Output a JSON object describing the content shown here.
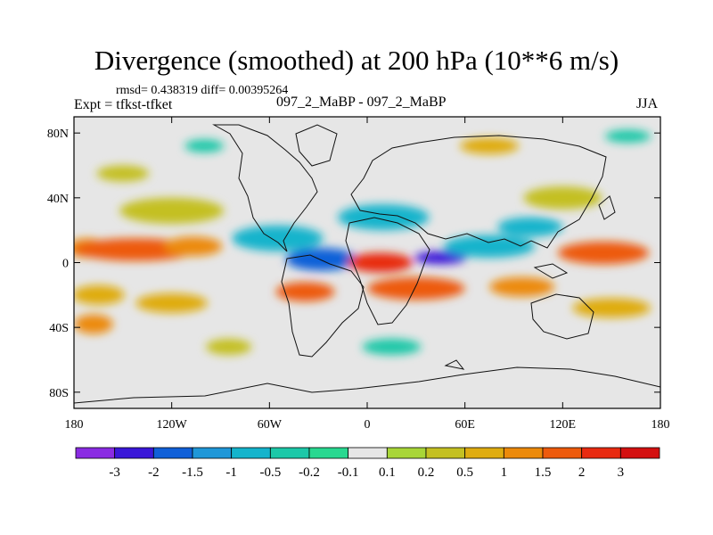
{
  "chart_data": {
    "type": "heatmap",
    "title": "Divergence (smoothed) at 200 hPa (10**6 m/s)",
    "subtitle_left_top": "rmsd= 0.438319 diff= 0.00395264",
    "subtitle_left": "Expt = tfkst-tfket",
    "subtitle_center": "097_2_MaBP - 097_2_MaBP",
    "subtitle_right": "JJA",
    "x_axis": {
      "range": [
        -180,
        180
      ],
      "ticks": [
        {
          "value": -180,
          "label": "180"
        },
        {
          "value": -120,
          "label": "120W"
        },
        {
          "value": -60,
          "label": "60W"
        },
        {
          "value": 0,
          "label": "0"
        },
        {
          "value": 60,
          "label": "60E"
        },
        {
          "value": 120,
          "label": "120E"
        },
        {
          "value": 180,
          "label": "180"
        }
      ]
    },
    "y_axis": {
      "range": [
        -90,
        90
      ],
      "ticks": [
        {
          "value": 80,
          "label": "80N"
        },
        {
          "value": 40,
          "label": "40N"
        },
        {
          "value": 0,
          "label": "0"
        },
        {
          "value": -40,
          "label": "40S"
        },
        {
          "value": -80,
          "label": "80S"
        }
      ]
    },
    "colorbar": {
      "levels": [
        "-3",
        "-2",
        "-1.5",
        "-1",
        "-0.5",
        "-0.2",
        "-0.1",
        "0.1",
        "0.2",
        "0.5",
        "1",
        "1.5",
        "2",
        "3"
      ],
      "colors": [
        "#8a2be2",
        "#3a17d8",
        "#1060d8",
        "#1f97d8",
        "#14b4cc",
        "#1cc8a8",
        "#28d890",
        "#e6e6e6",
        "#a8d638",
        "#c4c022",
        "#dfac10",
        "#ec8a0a",
        "#ed5a0c",
        "#e82a10",
        "#d41010"
      ]
    },
    "field_blobs": [
      {
        "lon": -172,
        "lat": 9,
        "rlon": 12,
        "rlat": 6,
        "level": 11
      },
      {
        "lon": -142,
        "lat": 8,
        "rlon": 38,
        "rlat": 7,
        "level": 12
      },
      {
        "lon": -107,
        "lat": 10,
        "rlon": 18,
        "rlat": 6,
        "level": 11
      },
      {
        "lon": -165,
        "lat": -20,
        "rlon": 16,
        "rlat": 6,
        "level": 10
      },
      {
        "lon": -120,
        "lat": -25,
        "rlon": 22,
        "rlat": 6,
        "level": 10
      },
      {
        "lon": -168,
        "lat": -38,
        "rlon": 12,
        "rlat": 6,
        "level": 11
      },
      {
        "lon": -120,
        "lat": 32,
        "rlon": 32,
        "rlat": 8,
        "level": 9
      },
      {
        "lon": -55,
        "lat": 15,
        "rlon": 28,
        "rlat": 8,
        "level": 4
      },
      {
        "lon": -28,
        "lat": 2,
        "rlon": 22,
        "rlat": 7,
        "level": 2
      },
      {
        "lon": -38,
        "lat": -18,
        "rlon": 18,
        "rlat": 6,
        "level": 12
      },
      {
        "lon": 8,
        "lat": 0,
        "rlon": 20,
        "rlat": 6,
        "level": 13
      },
      {
        "lon": 10,
        "lat": 28,
        "rlon": 28,
        "rlat": 8,
        "level": 4
      },
      {
        "lon": 30,
        "lat": -16,
        "rlon": 30,
        "rlat": 7,
        "level": 12
      },
      {
        "lon": 45,
        "lat": 3,
        "rlon": 16,
        "rlat": 4,
        "level": 1
      },
      {
        "lon": 75,
        "lat": 10,
        "rlon": 28,
        "rlat": 7,
        "level": 4
      },
      {
        "lon": 100,
        "lat": 22,
        "rlon": 20,
        "rlat": 6,
        "level": 4
      },
      {
        "lon": 95,
        "lat": -15,
        "rlon": 20,
        "rlat": 6,
        "level": 11
      },
      {
        "lon": 145,
        "lat": 6,
        "rlon": 28,
        "rlat": 7,
        "level": 12
      },
      {
        "lon": 150,
        "lat": -28,
        "rlon": 24,
        "rlat": 6,
        "level": 10
      },
      {
        "lon": -150,
        "lat": 55,
        "rlon": 16,
        "rlat": 5,
        "level": 9
      },
      {
        "lon": 120,
        "lat": 40,
        "rlon": 24,
        "rlat": 7,
        "level": 9
      },
      {
        "lon": -85,
        "lat": -52,
        "rlon": 14,
        "rlat": 5,
        "level": 9
      },
      {
        "lon": 15,
        "lat": -52,
        "rlon": 18,
        "rlat": 5,
        "level": 5
      },
      {
        "lon": 160,
        "lat": 78,
        "rlon": 14,
        "rlat": 4,
        "level": 5
      },
      {
        "lon": 75,
        "lat": 72,
        "rlon": 18,
        "rlat": 5,
        "level": 10
      },
      {
        "lon": -100,
        "lat": 72,
        "rlon": 12,
        "rlat": 4,
        "level": 5
      }
    ]
  }
}
